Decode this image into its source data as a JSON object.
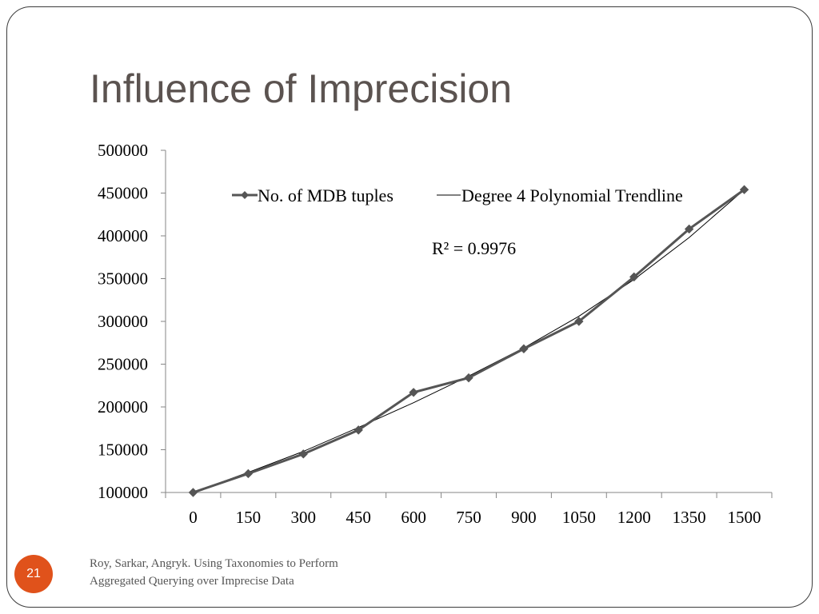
{
  "slide": {
    "title": "Influence of Imprecision",
    "page_number": "21",
    "footer_line1": "Roy, Sarkar, Angryk. Using Taxonomies to Perform",
    "footer_line2": "Aggregated Querying over Imprecise Data"
  },
  "chart_data": {
    "type": "line",
    "title": "",
    "xlabel": "",
    "ylabel": "",
    "x": [
      0,
      150,
      300,
      450,
      600,
      750,
      900,
      1050,
      1200,
      1350,
      1500
    ],
    "ylim": [
      100000,
      500000
    ],
    "yticks": [
      100000,
      150000,
      200000,
      250000,
      300000,
      350000,
      400000,
      450000,
      500000
    ],
    "series": [
      {
        "name": "No. of MDB tuples",
        "values": [
          100000,
          122000,
          145000,
          173000,
          217000,
          234000,
          268000,
          300000,
          352000,
          408000,
          454000
        ],
        "color": "#555555",
        "marker": "diamond"
      },
      {
        "name": "Degree 4 Polynomial Trendline",
        "values": [
          100000,
          123500,
          148000,
          176000,
          205000,
          236000,
          269000,
          306000,
          349000,
          398000,
          454000
        ],
        "color": "#000000",
        "marker": "none"
      }
    ],
    "annotation": "R² = 0.9976",
    "legend": "top",
    "grid": false
  }
}
